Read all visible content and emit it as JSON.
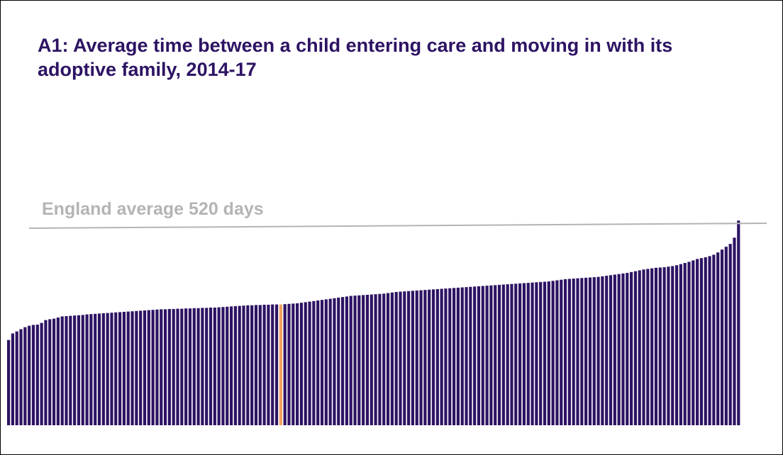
{
  "title": "A1: Average time between a child entering care and moving in with its adoptive family, 2014-17",
  "reference_label": "England average 520 days",
  "colors": {
    "bar": "#2d1363",
    "highlight": "#f5a25d",
    "reference_line": "#b4b4b4",
    "title": "#2d1363"
  },
  "chart_data": {
    "type": "bar",
    "title": "A1: Average time between a child entering care and moving in with its adoptive family, 2014-17",
    "xlabel": "",
    "ylabel": "",
    "ylim": [
      0,
      1000
    ],
    "grid": false,
    "highlight_index": 66,
    "reference": {
      "label": "England average 520 days",
      "value": 520
    },
    "values": [
      300,
      323,
      330,
      338,
      345,
      350,
      353,
      354,
      360,
      370,
      373,
      375,
      379,
      383,
      384,
      385,
      386,
      387,
      388,
      390,
      391,
      392,
      393,
      394,
      395,
      396,
      397,
      398,
      399,
      400,
      401,
      402,
      403,
      404,
      405,
      406,
      407,
      408,
      408,
      409,
      409,
      410,
      410,
      411,
      411,
      412,
      412,
      413,
      413,
      414,
      414,
      415,
      416,
      417,
      418,
      419,
      420,
      421,
      422,
      422,
      423,
      423,
      424,
      424,
      425,
      425,
      425,
      426,
      427,
      428,
      429,
      431,
      433,
      435,
      437,
      439,
      441,
      443,
      445,
      447,
      449,
      451,
      453,
      455,
      456,
      457,
      458,
      459,
      460,
      461,
      462,
      463,
      465,
      467,
      469,
      470,
      471,
      472,
      473,
      474,
      475,
      476,
      477,
      478,
      479,
      480,
      481,
      482,
      483,
      484,
      485,
      486,
      487,
      488,
      489,
      490,
      491,
      492,
      493,
      494,
      495,
      496,
      497,
      498,
      499,
      500,
      501,
      502,
      503,
      504,
      505,
      506,
      508,
      510,
      512,
      514,
      515,
      516,
      517,
      518,
      519,
      520,
      521,
      522,
      524,
      526,
      528,
      530,
      532,
      534,
      536,
      539,
      542,
      545,
      548,
      550,
      552,
      554,
      555,
      556,
      558,
      560,
      563,
      567,
      571,
      575,
      580,
      585,
      588,
      591,
      595,
      600,
      608,
      618,
      628,
      638,
      660,
      720
    ]
  }
}
